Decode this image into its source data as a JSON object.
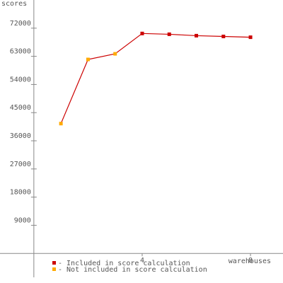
{
  "chart_data": {
    "type": "line",
    "y_label": "scores",
    "x_label": "warehouses",
    "x": [
      1,
      2,
      3,
      4,
      5,
      6,
      7,
      8
    ],
    "values": [
      41500,
      62000,
      63800,
      70300,
      70050,
      69600,
      69350,
      69100
    ],
    "line_color": "#cc0000",
    "legend": [
      {
        "name": "- Included in score calculation",
        "color": "#cc0000"
      },
      {
        "name": "- Not included in score calculation",
        "color": "#ffaa00"
      }
    ],
    "point_legend": [
      1,
      1,
      1,
      0,
      0,
      0,
      0,
      0
    ],
    "xlim": [
      -1.25,
      9.2
    ],
    "ylim": [
      -9450,
      81000
    ],
    "xticks": [
      4,
      8
    ],
    "yticks": [
      9000,
      18000,
      27000,
      36000,
      45000,
      54000,
      63000,
      72000
    ]
  }
}
